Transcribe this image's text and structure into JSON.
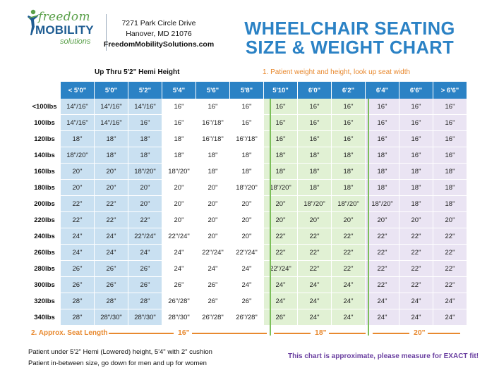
{
  "header": {
    "logo": {
      "word1": "freedom",
      "word2": "MOBILITY",
      "word3": "solutions"
    },
    "address_line1": "7271 Park Circle Drive",
    "address_line2": "Hanover, MD 21076",
    "website": "FreedomMobilitySolutions.com",
    "title_line1": "WHEELCHAIR SEATING",
    "title_line2": "SIZE & WEIGHT CHART"
  },
  "notes": {
    "left": "Up Thru 5'2\" Hemi Height",
    "right": "1. Patient weight and height, look up seat width"
  },
  "colors": {
    "blue_header": "#2b82c5",
    "zone_blue": "#c9e0f1",
    "zone_green": "#e1f1d4",
    "zone_purple": "#eae4f3",
    "orange": "#e8892f",
    "purple_text": "#6a3fa0"
  },
  "columns": [
    "< 5'0\"",
    "5'0\"",
    "5'2\"",
    "5'4\"",
    "5'6\"",
    "5'8\"",
    "5'10\"",
    "6'0\"",
    "6'2\"",
    "6'4\"",
    "6'6\"",
    "> 6'6\""
  ],
  "rows": [
    {
      "label": "<100lbs",
      "cells": [
        "14\"/16\"",
        "14\"/16\"",
        "14\"/16\"",
        "16\"",
        "16\"",
        "16\"",
        "16\"",
        "16\"",
        "16\"",
        "16\"",
        "16\"",
        "16\""
      ]
    },
    {
      "label": "100lbs",
      "cells": [
        "14\"/16\"",
        "14\"/16\"",
        "16\"",
        "16\"",
        "16\"/18\"",
        "16\"",
        "16\"",
        "16\"",
        "16\"",
        "16\"",
        "16\"",
        "16\""
      ]
    },
    {
      "label": "120lbs",
      "cells": [
        "18\"",
        "18\"",
        "18\"",
        "18\"",
        "16\"/18\"",
        "16\"/18\"",
        "16\"",
        "16\"",
        "16\"",
        "16\"",
        "16\"",
        "16\""
      ]
    },
    {
      "label": "140lbs",
      "cells": [
        "18\"/20\"",
        "18\"",
        "18\"",
        "18\"",
        "18\"",
        "18\"",
        "18\"",
        "18\"",
        "18\"",
        "18\"",
        "16\"",
        "16\""
      ]
    },
    {
      "label": "160lbs",
      "cells": [
        "20\"",
        "20\"",
        "18\"/20\"",
        "18\"/20\"",
        "18\"",
        "18\"",
        "18\"",
        "18\"",
        "18\"",
        "18\"",
        "18\"",
        "18\""
      ]
    },
    {
      "label": "180lbs",
      "cells": [
        "20\"",
        "20\"",
        "20\"",
        "20\"",
        "20\"",
        "18\"/20\"",
        "18\"/20\"",
        "18\"",
        "18\"",
        "18\"",
        "18\"",
        "18\""
      ]
    },
    {
      "label": "200lbs",
      "cells": [
        "22\"",
        "22\"",
        "20\"",
        "20\"",
        "20\"",
        "20\"",
        "20\"",
        "18\"/20\"",
        "18\"/20\"",
        "18\"/20\"",
        "18\"",
        "18\""
      ]
    },
    {
      "label": "220lbs",
      "cells": [
        "22\"",
        "22\"",
        "22\"",
        "20\"",
        "20\"",
        "20\"",
        "20\"",
        "20\"",
        "20\"",
        "20\"",
        "20\"",
        "20\""
      ]
    },
    {
      "label": "240lbs",
      "cells": [
        "24\"",
        "24\"",
        "22\"/24\"",
        "22\"/24\"",
        "20\"",
        "20\"",
        "22\"",
        "22\"",
        "22\"",
        "22\"",
        "22\"",
        "22\""
      ]
    },
    {
      "label": "260lbs",
      "cells": [
        "24\"",
        "24\"",
        "24\"",
        "24\"",
        "22\"/24\"",
        "22\"/24\"",
        "22\"",
        "22\"",
        "22\"",
        "22\"",
        "22\"",
        "22\""
      ]
    },
    {
      "label": "280lbs",
      "cells": [
        "26\"",
        "26\"",
        "26\"",
        "24\"",
        "24\"",
        "24\"",
        "22\"/24\"",
        "22\"",
        "22\"",
        "22\"",
        "22\"",
        "22\""
      ]
    },
    {
      "label": "300lbs",
      "cells": [
        "26\"",
        "26\"",
        "26\"",
        "26\"",
        "26\"",
        "24\"",
        "24\"",
        "24\"",
        "24\"",
        "22\"",
        "22\"",
        "22\""
      ]
    },
    {
      "label": "320lbs",
      "cells": [
        "28\"",
        "28\"",
        "28\"",
        "26\"/28\"",
        "26\"",
        "26\"",
        "24\"",
        "24\"",
        "24\"",
        "24\"",
        "24\"",
        "24\""
      ]
    },
    {
      "label": "340lbs",
      "cells": [
        "28\"",
        "28\"/30\"",
        "28\"/30\"",
        "28\"/30\"",
        "26\"/28\"",
        "26\"/28\"",
        "26\"",
        "24\"",
        "24\"",
        "24\"",
        "24\"",
        "24\""
      ]
    }
  ],
  "seat_length": {
    "label": "2. Approx. Seat Length",
    "v1": "16\"",
    "v2": "18\"",
    "v3": "20\""
  },
  "footer": {
    "line1": "Patient under 5'2\" Hemi (Lowered) height, 5'4\" with 2\" cushion",
    "line2": "Patient in-between size, go down for men and up for women",
    "disclaimer": "This chart is approximate, please measure for EXACT fit!"
  }
}
